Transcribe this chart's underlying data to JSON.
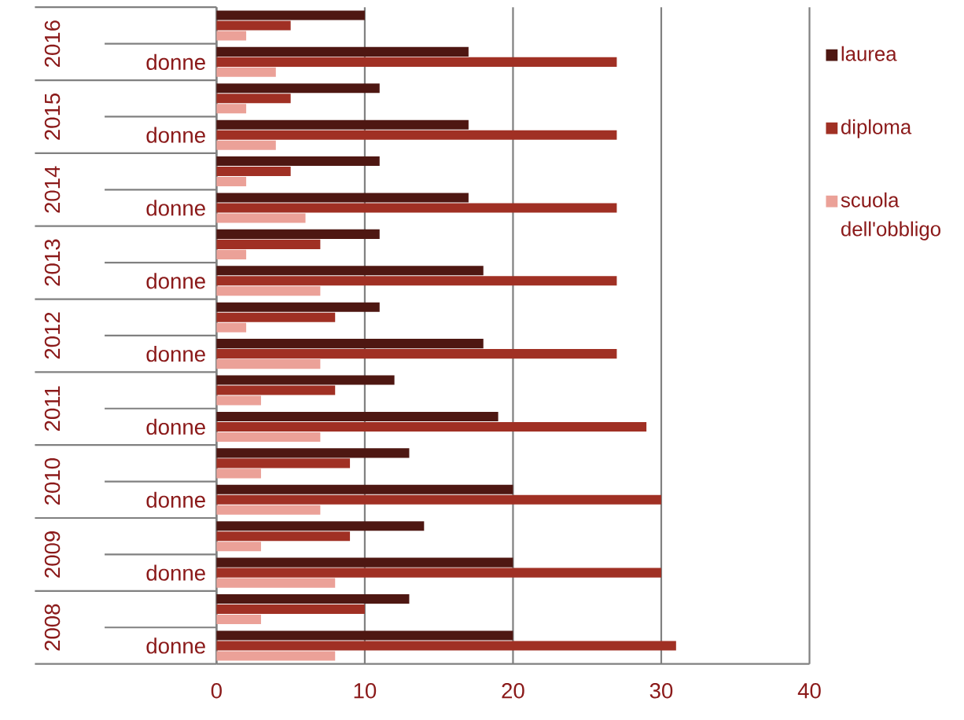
{
  "chart_data": {
    "type": "bar",
    "orientation": "horizontal",
    "categories": [
      null,
      "donne",
      null,
      "donne",
      null,
      "donne",
      null,
      "donne",
      null,
      "donne",
      null,
      "donne",
      null,
      "donne",
      null,
      "donne",
      null,
      "donne"
    ],
    "series": [
      {
        "name": "laurea",
        "color": "#4e1712",
        "values": [
          10,
          17,
          11,
          17,
          11,
          17,
          11,
          18,
          11,
          18,
          12,
          19,
          13,
          20,
          14,
          20,
          13,
          20
        ]
      },
      {
        "name": "diploma",
        "color": "#a03024",
        "values": [
          5,
          27,
          5,
          27,
          5,
          27,
          7,
          27,
          8,
          27,
          8,
          29,
          9,
          30,
          9,
          30,
          10,
          31
        ]
      },
      {
        "name": "scuola dell'obbligo",
        "color": "#eba198",
        "values": [
          2,
          4,
          2,
          4,
          2,
          6,
          2,
          7,
          2,
          7,
          3,
          7,
          3,
          7,
          3,
          8,
          3,
          8
        ]
      }
    ],
    "xlim": [
      0,
      40
    ],
    "xticks": [
      0,
      10,
      20,
      30,
      40
    ],
    "grid": "x",
    "legend": "right",
    "annotations": [
      "2016",
      "2015",
      "2014",
      "2013",
      "2012",
      "2011",
      "2010",
      "2009",
      "2008"
    ]
  }
}
